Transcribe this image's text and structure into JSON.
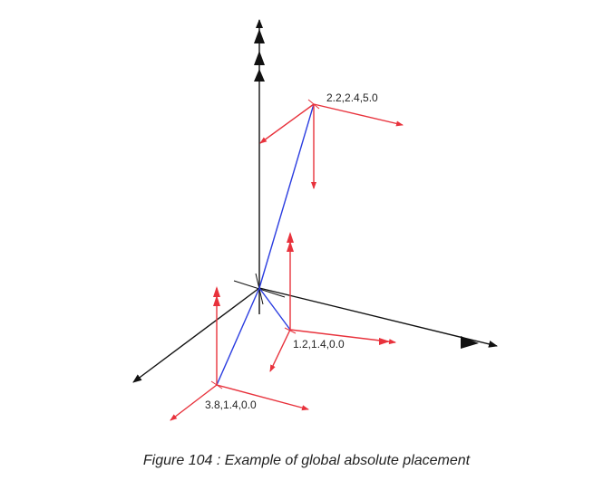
{
  "caption": "Figure 104 : Example of global absolute placement",
  "points": [
    {
      "label": "2.2,2.4,5.0"
    },
    {
      "label": "1.2,1.4,0.0"
    },
    {
      "label": "3.8,1.4,0.0"
    }
  ],
  "colors": {
    "global_axes": "#111111",
    "local_axes": "#e8323c",
    "connector": "#2a3ce0",
    "text": "#222222"
  }
}
